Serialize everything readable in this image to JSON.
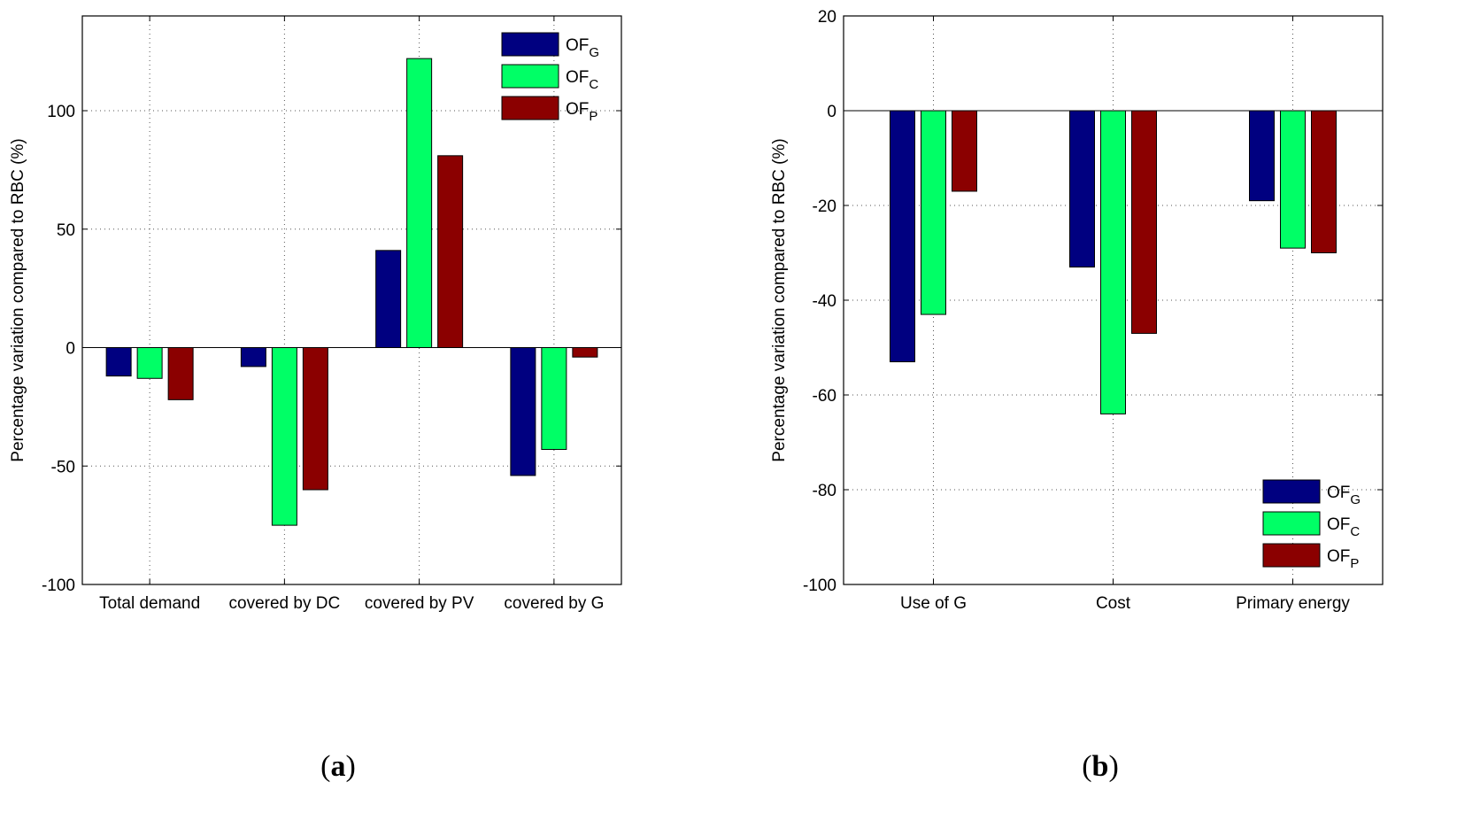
{
  "chart_data": [
    {
      "type": "bar",
      "panel_label": "(a)",
      "panel_letter": "a",
      "ylabel": "Percentage variation compared to RBC (%)",
      "xlabel": "",
      "ylim": [
        -100,
        140
      ],
      "yticks": [
        -100,
        -50,
        0,
        50,
        100
      ],
      "grid": true,
      "legend_position": "top-right",
      "categories": [
        "Total demand",
        "covered by DC",
        "covered by PV",
        "covered by G"
      ],
      "series": [
        {
          "name": "OF",
          "subscript": "G",
          "color": "#000080",
          "values": [
            -12,
            -8,
            41,
            -54
          ]
        },
        {
          "name": "OF",
          "subscript": "C",
          "color": "#00ff66",
          "values": [
            -13,
            -75,
            122,
            -43
          ]
        },
        {
          "name": "OF",
          "subscript": "P",
          "color": "#8b0000",
          "values": [
            -22,
            -60,
            81,
            -4
          ]
        }
      ]
    },
    {
      "type": "bar",
      "panel_label": "(b)",
      "panel_letter": "b",
      "ylabel": "Percentage variation compared to RBC (%)",
      "xlabel": "",
      "ylim": [
        -100,
        20
      ],
      "yticks": [
        -100,
        -80,
        -60,
        -40,
        -20,
        0,
        20
      ],
      "grid": true,
      "legend_position": "bottom-right",
      "categories": [
        "Use of G",
        "Cost",
        "Primary energy"
      ],
      "series": [
        {
          "name": "OF",
          "subscript": "G",
          "color": "#000080",
          "values": [
            -53,
            -33,
            -19
          ]
        },
        {
          "name": "OF",
          "subscript": "C",
          "color": "#00ff66",
          "values": [
            -43,
            -64,
            -29
          ]
        },
        {
          "name": "OF",
          "subscript": "P",
          "color": "#8b0000",
          "values": [
            -17,
            -47,
            -30
          ]
        }
      ]
    }
  ]
}
